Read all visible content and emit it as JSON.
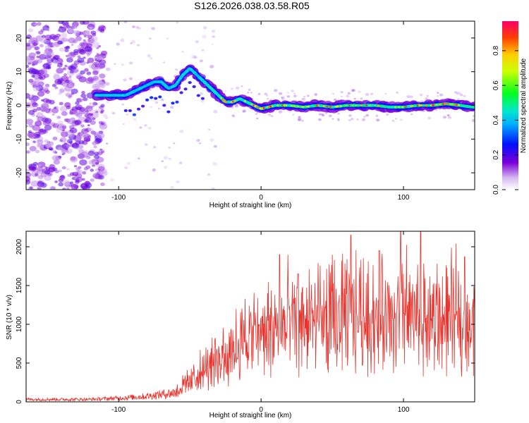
{
  "title": "S126.2026.038.03.58.R05",
  "chart_data": [
    {
      "type": "heatmap",
      "name": "spectrogram",
      "xlabel": "Height of straight line (km)",
      "ylabel": "Frequency (Hz)",
      "xlim": [
        -165,
        150
      ],
      "ylim": [
        -25,
        25
      ],
      "xticks": [
        -100,
        0,
        100
      ],
      "yticks": [
        -20,
        -10,
        0,
        10,
        20
      ],
      "colorbar": {
        "label": "Normalized spectral amplitude",
        "range": [
          0.0,
          0.97
        ],
        "ticks": [
          0.0,
          0.2,
          0.4,
          0.6,
          0.8
        ]
      },
      "ridge": {
        "x": [
          -115,
          -105,
          -95,
          -90,
          -85,
          -80,
          -75,
          -70,
          -65,
          -60,
          -55,
          -50,
          -45,
          -40,
          -35,
          -30,
          -25,
          -20,
          -15,
          -10,
          -5,
          0,
          10,
          20,
          30,
          40,
          50,
          60,
          70,
          80,
          90,
          100,
          110,
          120,
          130,
          140,
          148
        ],
        "y": [
          3,
          3,
          3,
          4,
          5,
          6,
          7,
          7,
          5,
          6,
          9,
          11,
          9,
          7,
          5,
          3,
          1,
          1,
          2,
          1,
          0,
          -1,
          0,
          0,
          -0.5,
          0,
          -0.5,
          0,
          0,
          0,
          -0.5,
          -0.5,
          0,
          0,
          0.5,
          0,
          -0.5
        ]
      }
    },
    {
      "type": "line",
      "name": "snr",
      "xlabel": "Height of straight line (km)",
      "ylabel": "SNR (10 * v/v)",
      "xlim": [
        -165,
        150
      ],
      "ylim": [
        0,
        2200
      ],
      "xticks": [
        -100,
        0,
        100
      ],
      "yticks": [
        0,
        500,
        1000,
        1500,
        2000
      ],
      "color": "#e8322c",
      "envelope_x": [
        -165,
        -120,
        -100,
        -80,
        -60,
        -50,
        -40,
        -30,
        -20,
        -10,
        0,
        10,
        20,
        30,
        40,
        50,
        60,
        70,
        80,
        90,
        100,
        110,
        120,
        130,
        140,
        150
      ],
      "envelope_y": [
        40,
        40,
        60,
        90,
        150,
        300,
        450,
        600,
        800,
        900,
        1000,
        1050,
        1100,
        1150,
        1150,
        1200,
        1200,
        1250,
        1200,
        1150,
        1250,
        1200,
        1150,
        1150,
        1200,
        1150
      ],
      "peaks": [
        {
          "x": 13,
          "y": 1900
        },
        {
          "x": 26,
          "y": 1650
        },
        {
          "x": 63,
          "y": 2150
        },
        {
          "x": 83,
          "y": 1950
        },
        {
          "x": 98,
          "y": 2200
        },
        {
          "x": 112,
          "y": 2200
        },
        {
          "x": 143,
          "y": 1870
        }
      ]
    }
  ]
}
